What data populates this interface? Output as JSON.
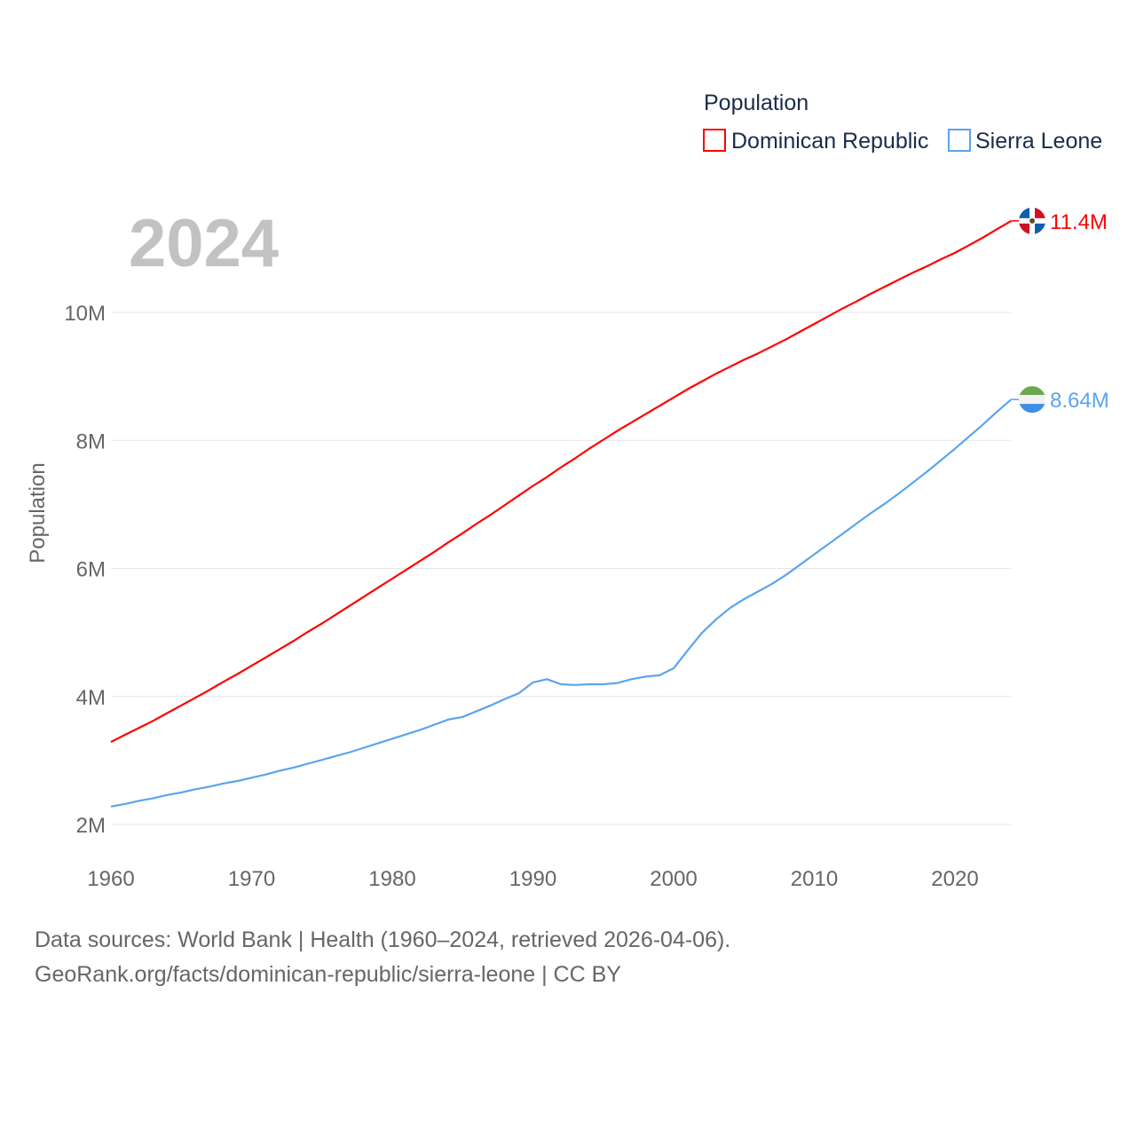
{
  "chart_data": {
    "type": "line",
    "title": "Population",
    "year_label": "2024",
    "xlabel": "",
    "ylabel": "Population",
    "xlim": [
      1960,
      2024
    ],
    "ylim": [
      2,
      11.6
    ],
    "x_ticks": [
      "1960",
      "1970",
      "1980",
      "1990",
      "2000",
      "2010",
      "2020"
    ],
    "y_ticks": [
      {
        "value": 2,
        "label": "2M"
      },
      {
        "value": 4,
        "label": "4M"
      },
      {
        "value": 6,
        "label": "6M"
      },
      {
        "value": 8,
        "label": "8M"
      },
      {
        "value": 10,
        "label": "10M"
      }
    ],
    "grid": true,
    "legend_position": "top-right",
    "x_start": 1960,
    "series": [
      {
        "name": "Dominican Republic",
        "color": "#ff0000",
        "end_label": "11.4M",
        "flag": "dominican-republic-flag",
        "values": [
          3.29,
          3.4,
          3.51,
          3.62,
          3.74,
          3.86,
          3.98,
          4.1,
          4.23,
          4.35,
          4.48,
          4.61,
          4.74,
          4.87,
          5.01,
          5.14,
          5.28,
          5.42,
          5.56,
          5.7,
          5.84,
          5.98,
          6.12,
          6.26,
          6.41,
          6.55,
          6.7,
          6.84,
          6.99,
          7.14,
          7.29,
          7.43,
          7.58,
          7.72,
          7.87,
          8.01,
          8.15,
          8.28,
          8.41,
          8.54,
          8.67,
          8.8,
          8.92,
          9.04,
          9.15,
          9.26,
          9.36,
          9.47,
          9.58,
          9.7,
          9.82,
          9.94,
          10.06,
          10.17,
          10.29,
          10.4,
          10.51,
          10.62,
          10.72,
          10.83,
          10.93,
          11.05,
          11.17,
          11.3,
          11.43
        ]
      },
      {
        "name": "Sierra Leone",
        "color": "#5aa5ec",
        "end_label": "8.64M",
        "flag": "sierra-leone-flag",
        "values": [
          2.28,
          2.32,
          2.37,
          2.41,
          2.46,
          2.5,
          2.55,
          2.59,
          2.64,
          2.68,
          2.73,
          2.78,
          2.84,
          2.89,
          2.95,
          3.01,
          3.07,
          3.13,
          3.2,
          3.27,
          3.34,
          3.41,
          3.48,
          3.56,
          3.64,
          3.68,
          3.77,
          3.86,
          3.96,
          4.05,
          4.22,
          4.27,
          4.19,
          4.18,
          4.19,
          4.19,
          4.21,
          4.27,
          4.31,
          4.33,
          4.44,
          4.72,
          4.99,
          5.2,
          5.38,
          5.52,
          5.64,
          5.76,
          5.9,
          6.06,
          6.22,
          6.38,
          6.54,
          6.7,
          6.86,
          7.01,
          7.17,
          7.34,
          7.51,
          7.69,
          7.87,
          8.06,
          8.25,
          8.45,
          8.64
        ]
      }
    ]
  },
  "footer": {
    "line1": "Data sources: World Bank | Health (1960–2024, retrieved 2026-04-06).",
    "line2": "GeoRank.org/facts/dominican-republic/sierra-leone | CC BY"
  }
}
